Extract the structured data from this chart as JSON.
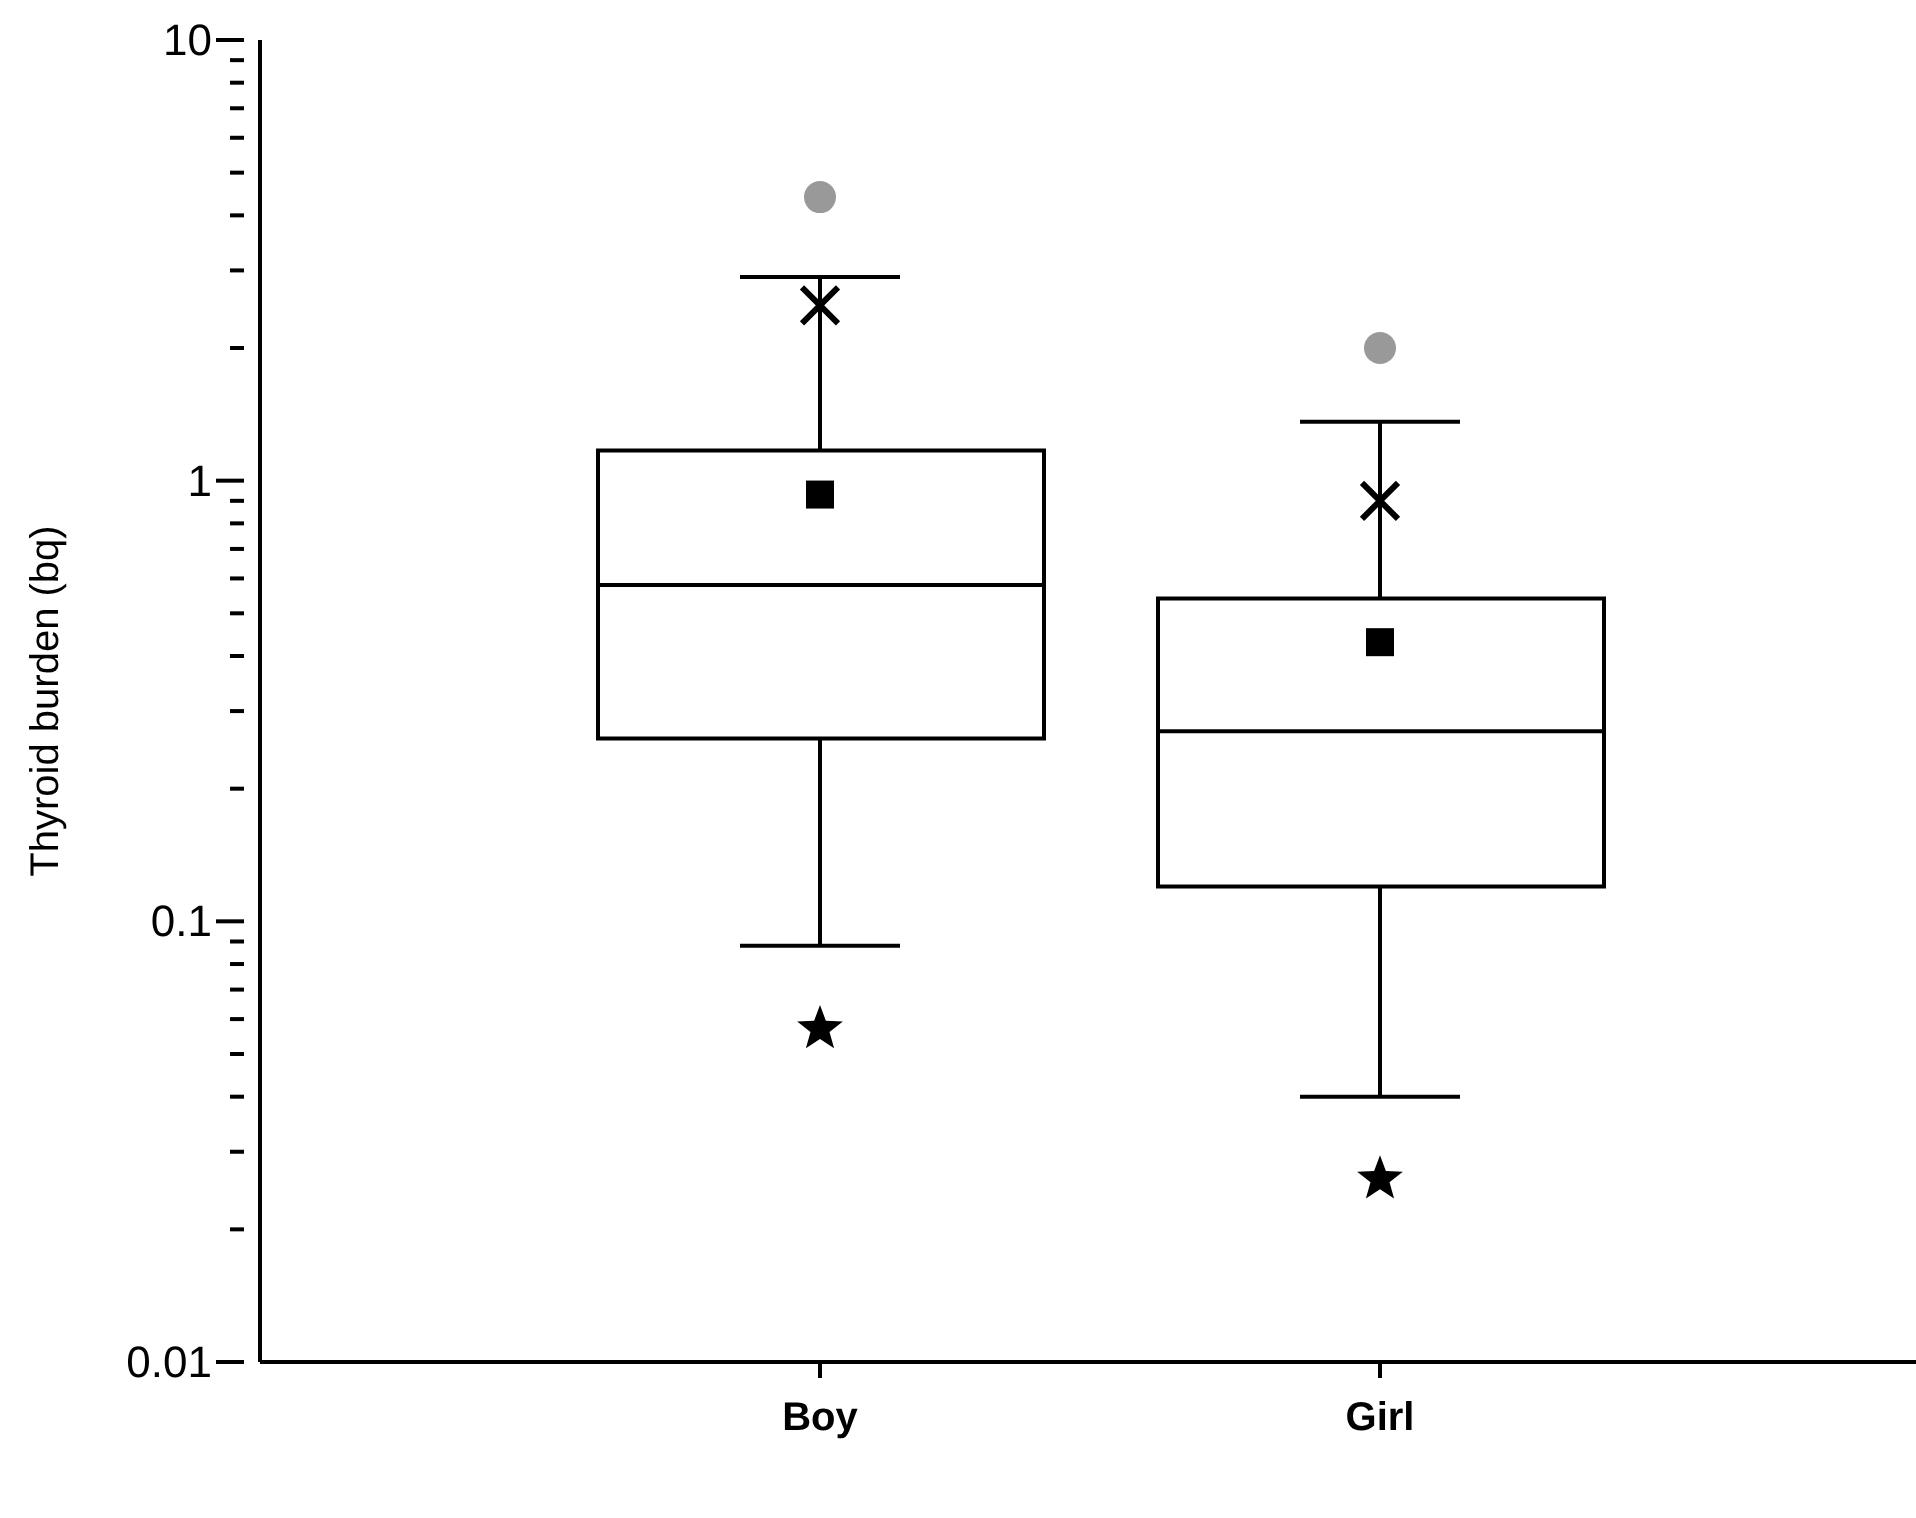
{
  "chart_data": {
    "type": "box",
    "ylabel": "Thyroid burden (bq)",
    "categories": [
      "Boy",
      "Girl"
    ],
    "log": true,
    "ylim": [
      0.01,
      10
    ],
    "yticks": [
      0.01,
      {
        "value": 0.02,
        "label": null
      },
      {
        "value": 0.03,
        "label": null
      },
      {
        "value": 0.04,
        "label": null
      },
      {
        "value": 0.05,
        "label": null
      },
      {
        "value": 0.06,
        "label": null
      },
      {
        "value": 0.07,
        "label": null
      },
      {
        "value": 0.08,
        "label": null
      },
      {
        "value": 0.09,
        "label": null
      },
      0.1,
      {
        "value": 0.2,
        "label": null
      },
      {
        "value": 0.3,
        "label": null
      },
      {
        "value": 0.4,
        "label": null
      },
      {
        "value": 0.5,
        "label": null
      },
      {
        "value": 0.6,
        "label": null
      },
      {
        "value": 0.7,
        "label": null
      },
      {
        "value": 0.8,
        "label": null
      },
      {
        "value": 0.9,
        "label": null
      },
      1,
      {
        "value": 2,
        "label": null
      },
      {
        "value": 3,
        "label": null
      },
      {
        "value": 4,
        "label": null
      },
      {
        "value": 5,
        "label": null
      },
      {
        "value": 6,
        "label": null
      },
      {
        "value": 7,
        "label": null
      },
      {
        "value": 8,
        "label": null
      },
      {
        "value": 9,
        "label": null
      },
      10
    ],
    "boxes": [
      {
        "low": 0.088,
        "q1": 0.26,
        "median": 0.58,
        "q3": 1.17,
        "high": 2.9,
        "mean": 0.93
      },
      {
        "low": 0.04,
        "q1": 0.12,
        "median": 0.27,
        "q3": 0.54,
        "high": 1.36,
        "mean": 0.43
      }
    ],
    "series": [
      {
        "type": "scatter",
        "values": [
          4.4,
          2.0
        ],
        "marker": "circle",
        "color": "#999999"
      },
      {
        "type": "scatter",
        "values": [
          2.5,
          0.9
        ],
        "marker": "cross",
        "color": "#000000"
      },
      {
        "type": "scatter",
        "values": [
          0.057,
          0.026
        ],
        "marker": "star",
        "color": "#000000"
      }
    ]
  }
}
